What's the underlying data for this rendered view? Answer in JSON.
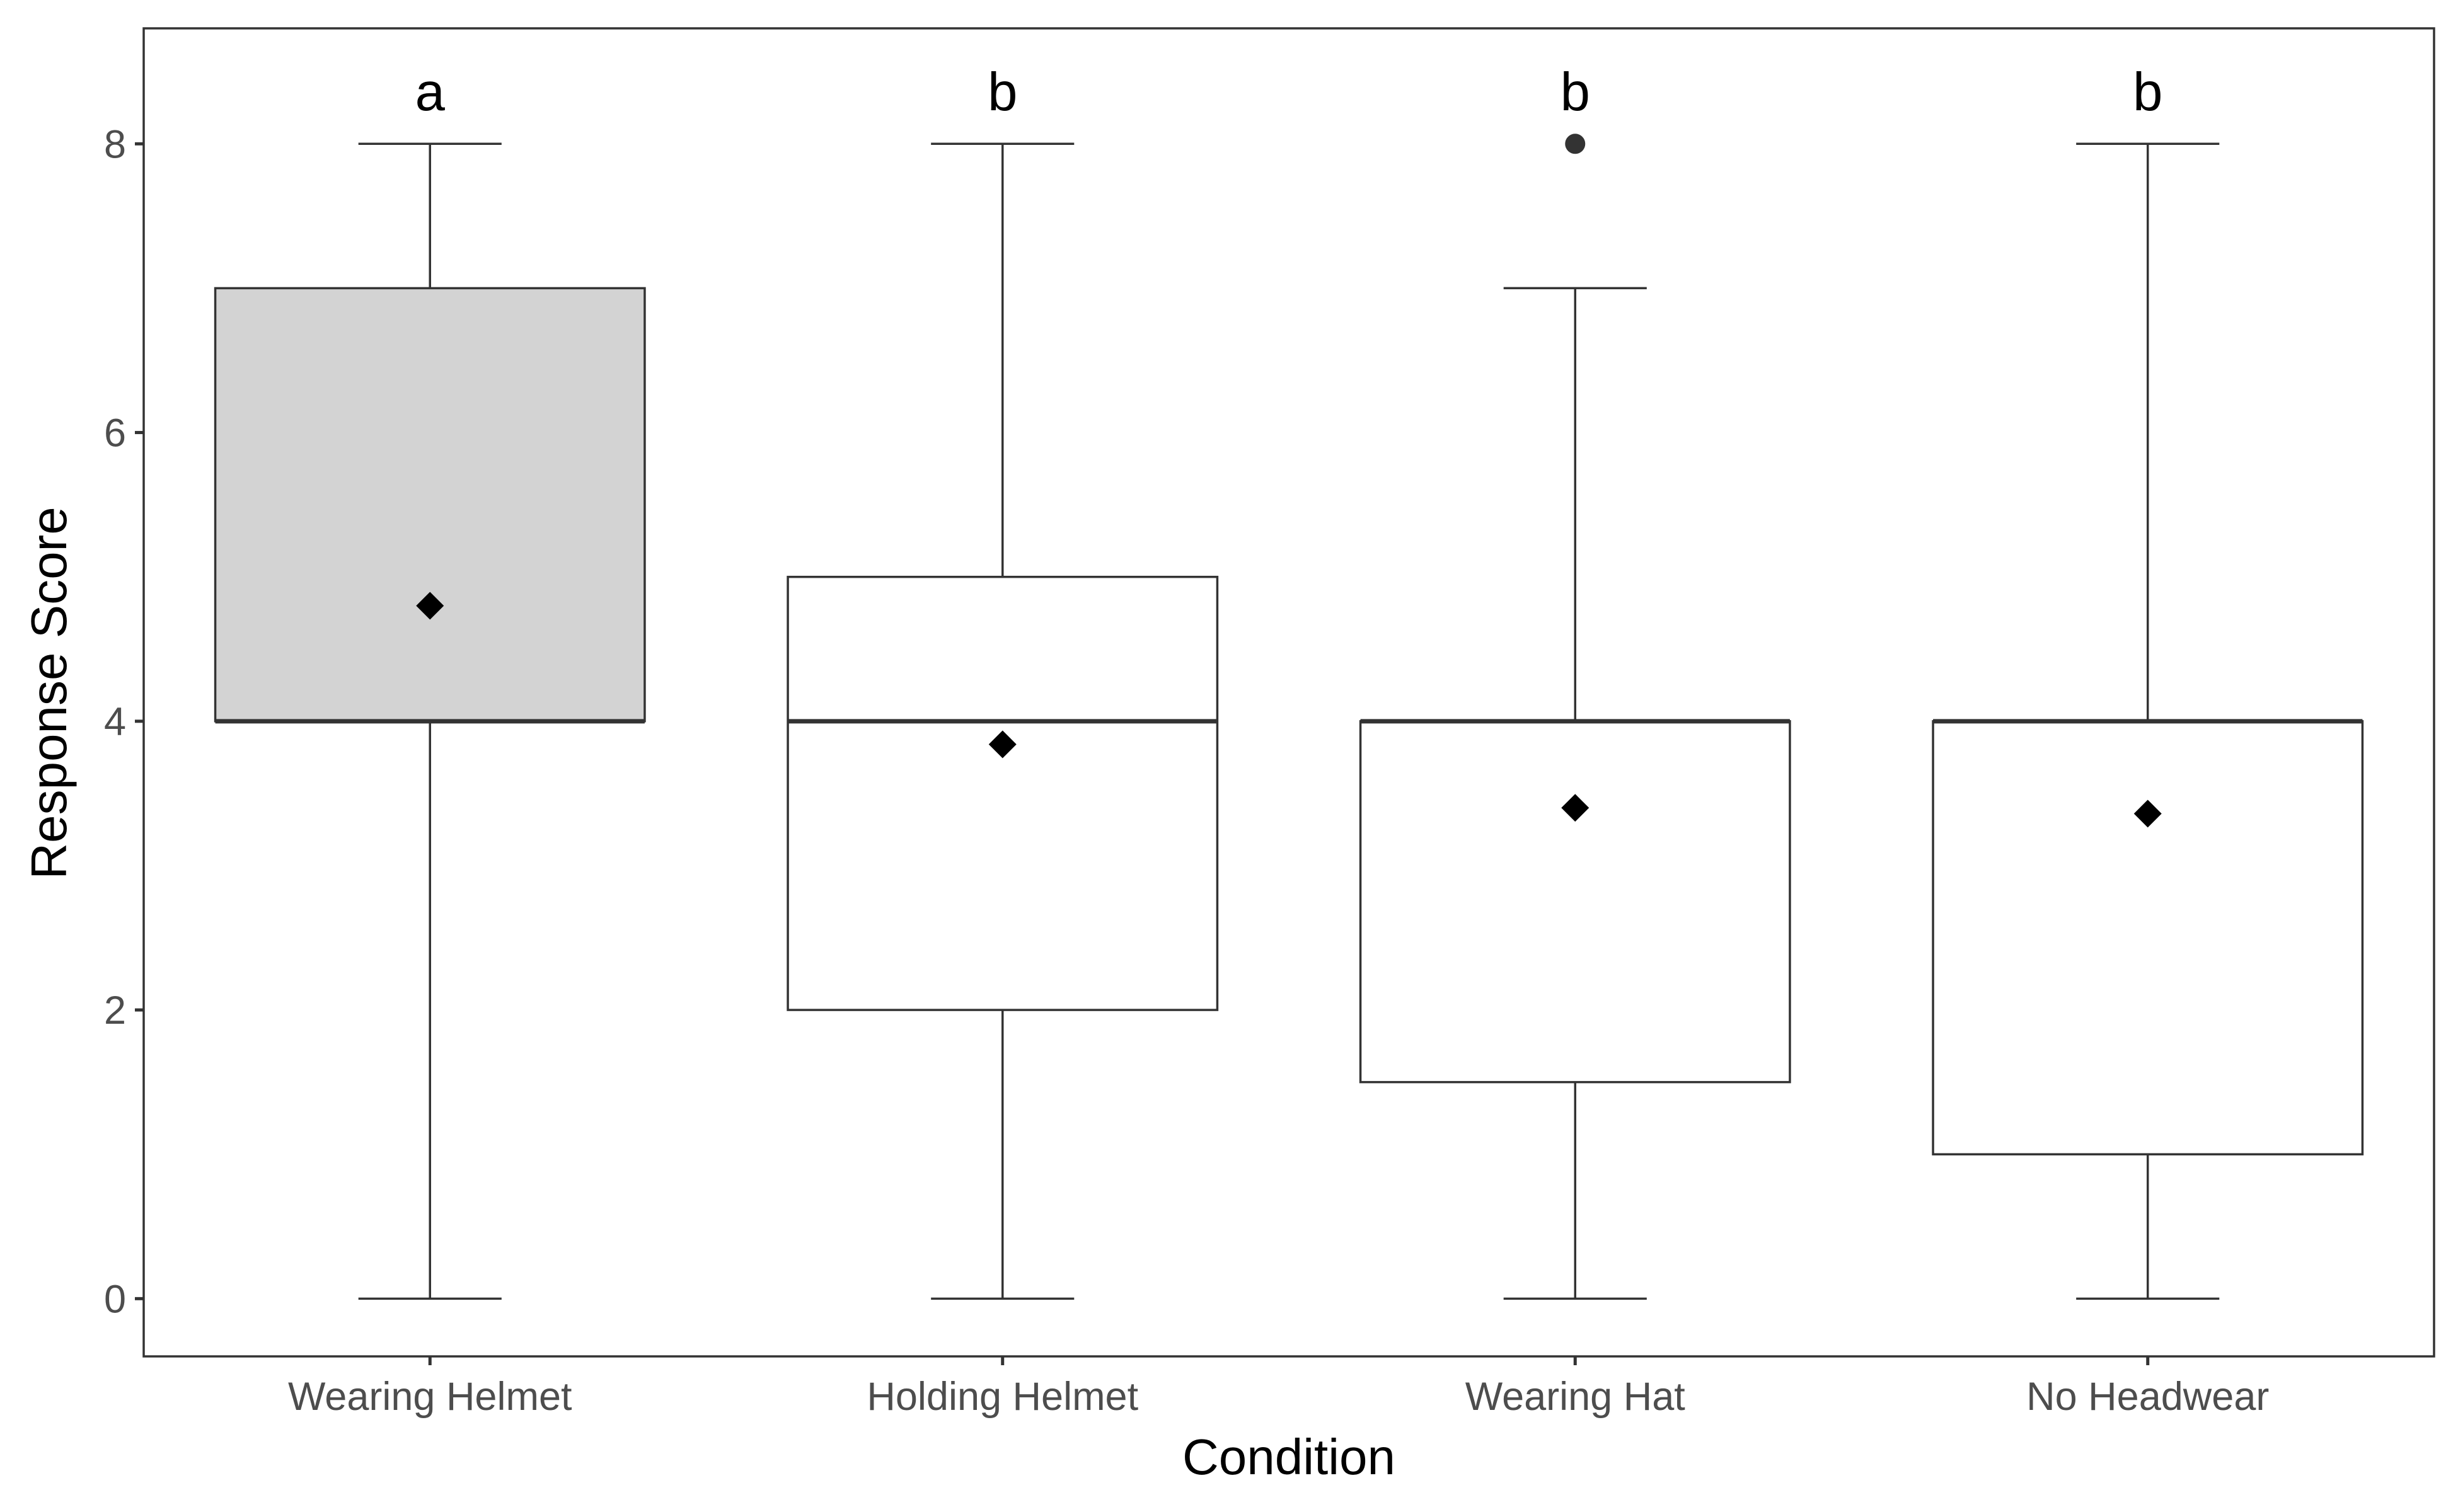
{
  "chart_data": {
    "type": "box",
    "title": "",
    "xlabel": "Condition",
    "ylabel": "Response Score",
    "ylim": [
      -0.4,
      8.8
    ],
    "yticks": [
      0,
      2,
      4,
      6,
      8
    ],
    "grid": false,
    "legend": "none",
    "categories": [
      "Wearing Helmet",
      "Holding Helmet",
      "Wearing Hat",
      "No Headwear"
    ],
    "boxes": [
      {
        "category": "Wearing Helmet",
        "min": 0,
        "q1": 4,
        "median": 4,
        "q3": 7,
        "max": 8,
        "mean": 4.8,
        "outliers": [],
        "group_letter": "a",
        "fill": "#d3d3d3"
      },
      {
        "category": "Holding Helmet",
        "min": 0,
        "q1": 2,
        "median": 4,
        "q3": 5,
        "max": 8,
        "mean": 3.84,
        "outliers": [],
        "group_letter": "b",
        "fill": "#ffffff"
      },
      {
        "category": "Wearing Hat",
        "min": 0,
        "q1": 1.5,
        "median": 4,
        "q3": 4,
        "max": 7,
        "mean": 3.4,
        "outliers": [
          8
        ],
        "group_letter": "b",
        "fill": "#ffffff"
      },
      {
        "category": "No Headwear",
        "min": 0,
        "q1": 1,
        "median": 4,
        "q3": 4,
        "max": 8,
        "mean": 3.36,
        "outliers": [],
        "group_letter": "b",
        "fill": "#ffffff"
      }
    ],
    "colors": {
      "line": "#333333",
      "mean_marker": "#000000",
      "outlier": "#333333"
    }
  }
}
